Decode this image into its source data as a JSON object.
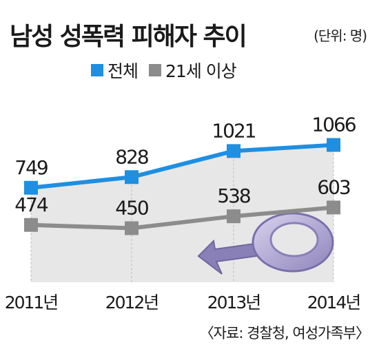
{
  "title": "남성 성폭력 피해자 추이",
  "unit": "(단위: 명)",
  "source": "〈자료: 경찰청, 여성가족부〉",
  "colors": {
    "total": "#1e8fe1",
    "adult": "#8c8c8c",
    "band": "#e7e7e7"
  },
  "chart_data": {
    "type": "line",
    "categories": [
      "2011년",
      "2012년",
      "2013년",
      "2014년"
    ],
    "series": [
      {
        "name": "전체",
        "values": [
          749,
          828,
          1021,
          1066
        ]
      },
      {
        "name": "21세 이상",
        "values": [
          474,
          450,
          538,
          603
        ]
      }
    ],
    "ylim": [
      50,
      1400
    ],
    "legend": "top",
    "grid": false
  }
}
